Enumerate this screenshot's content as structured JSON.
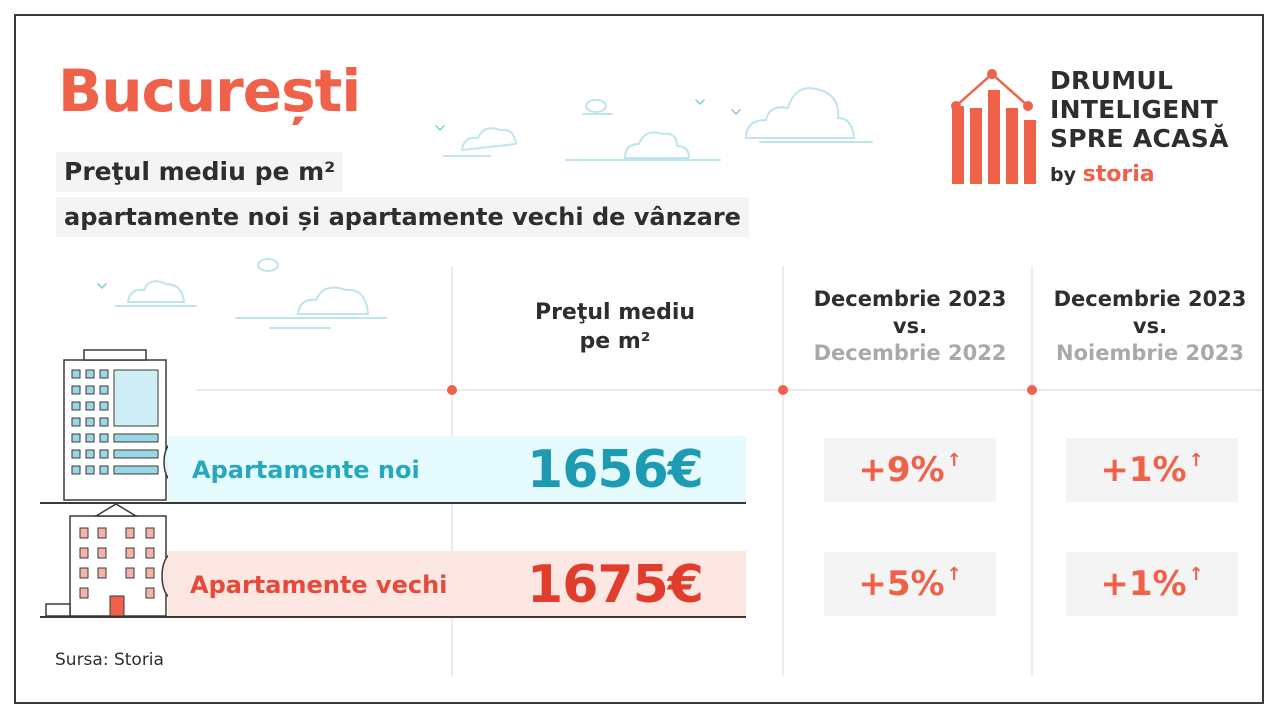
{
  "title": "București",
  "subtitle": {
    "line1": "Preţul mediu pe m²",
    "line2": "apartamente noi și apartamente vechi de vânzare"
  },
  "brand": {
    "lines": [
      "DRUMUL",
      "INTELIGENT",
      "SPRE ACASĂ"
    ],
    "by": "by",
    "name": "storia"
  },
  "columns": {
    "price": {
      "line1": "Preţul mediu",
      "line2": "pe m²"
    },
    "change1": {
      "line1": "Decembrie 2023",
      "line2": "vs.",
      "line3": "Decembrie 2022"
    },
    "change2": {
      "line1": "Decembrie 2023",
      "line2": "vs.",
      "line3": "Noiembrie 2023"
    }
  },
  "rows": [
    {
      "label": "Apartamente noi",
      "price": "1656€",
      "change1": "+9%",
      "change2": "+1%"
    },
    {
      "label": "Apartamente vechi",
      "price": "1675€",
      "change1": "+5%",
      "change2": "+1%"
    }
  ],
  "arrow_glyph": "↑",
  "source": "Sursa: Storia",
  "colors": {
    "accent": "#f0614a",
    "new_text": "#1d9bb3",
    "new_bg": "#e6fbfd",
    "old_text": "#e03d2d",
    "old_bg": "#fce7e3",
    "muted": "#a9a9a9"
  },
  "chart_data": {
    "type": "table",
    "title": "Preţul mediu pe m² — București",
    "columns": [
      "Preţul mediu pe m²",
      "Decembrie 2023 vs. Decembrie 2022",
      "Decembrie 2023 vs. Noiembrie 2023"
    ],
    "categories": [
      "Apartamente noi",
      "Apartamente vechi"
    ],
    "series": [
      {
        "name": "Preţul mediu pe m² (€)",
        "values": [
          1656,
          1675
        ]
      },
      {
        "name": "Decembrie 2023 vs. Decembrie 2022 (%)",
        "values": [
          9,
          5
        ]
      },
      {
        "name": "Decembrie 2023 vs. Noiembrie 2023 (%)",
        "values": [
          1,
          1
        ]
      }
    ]
  }
}
